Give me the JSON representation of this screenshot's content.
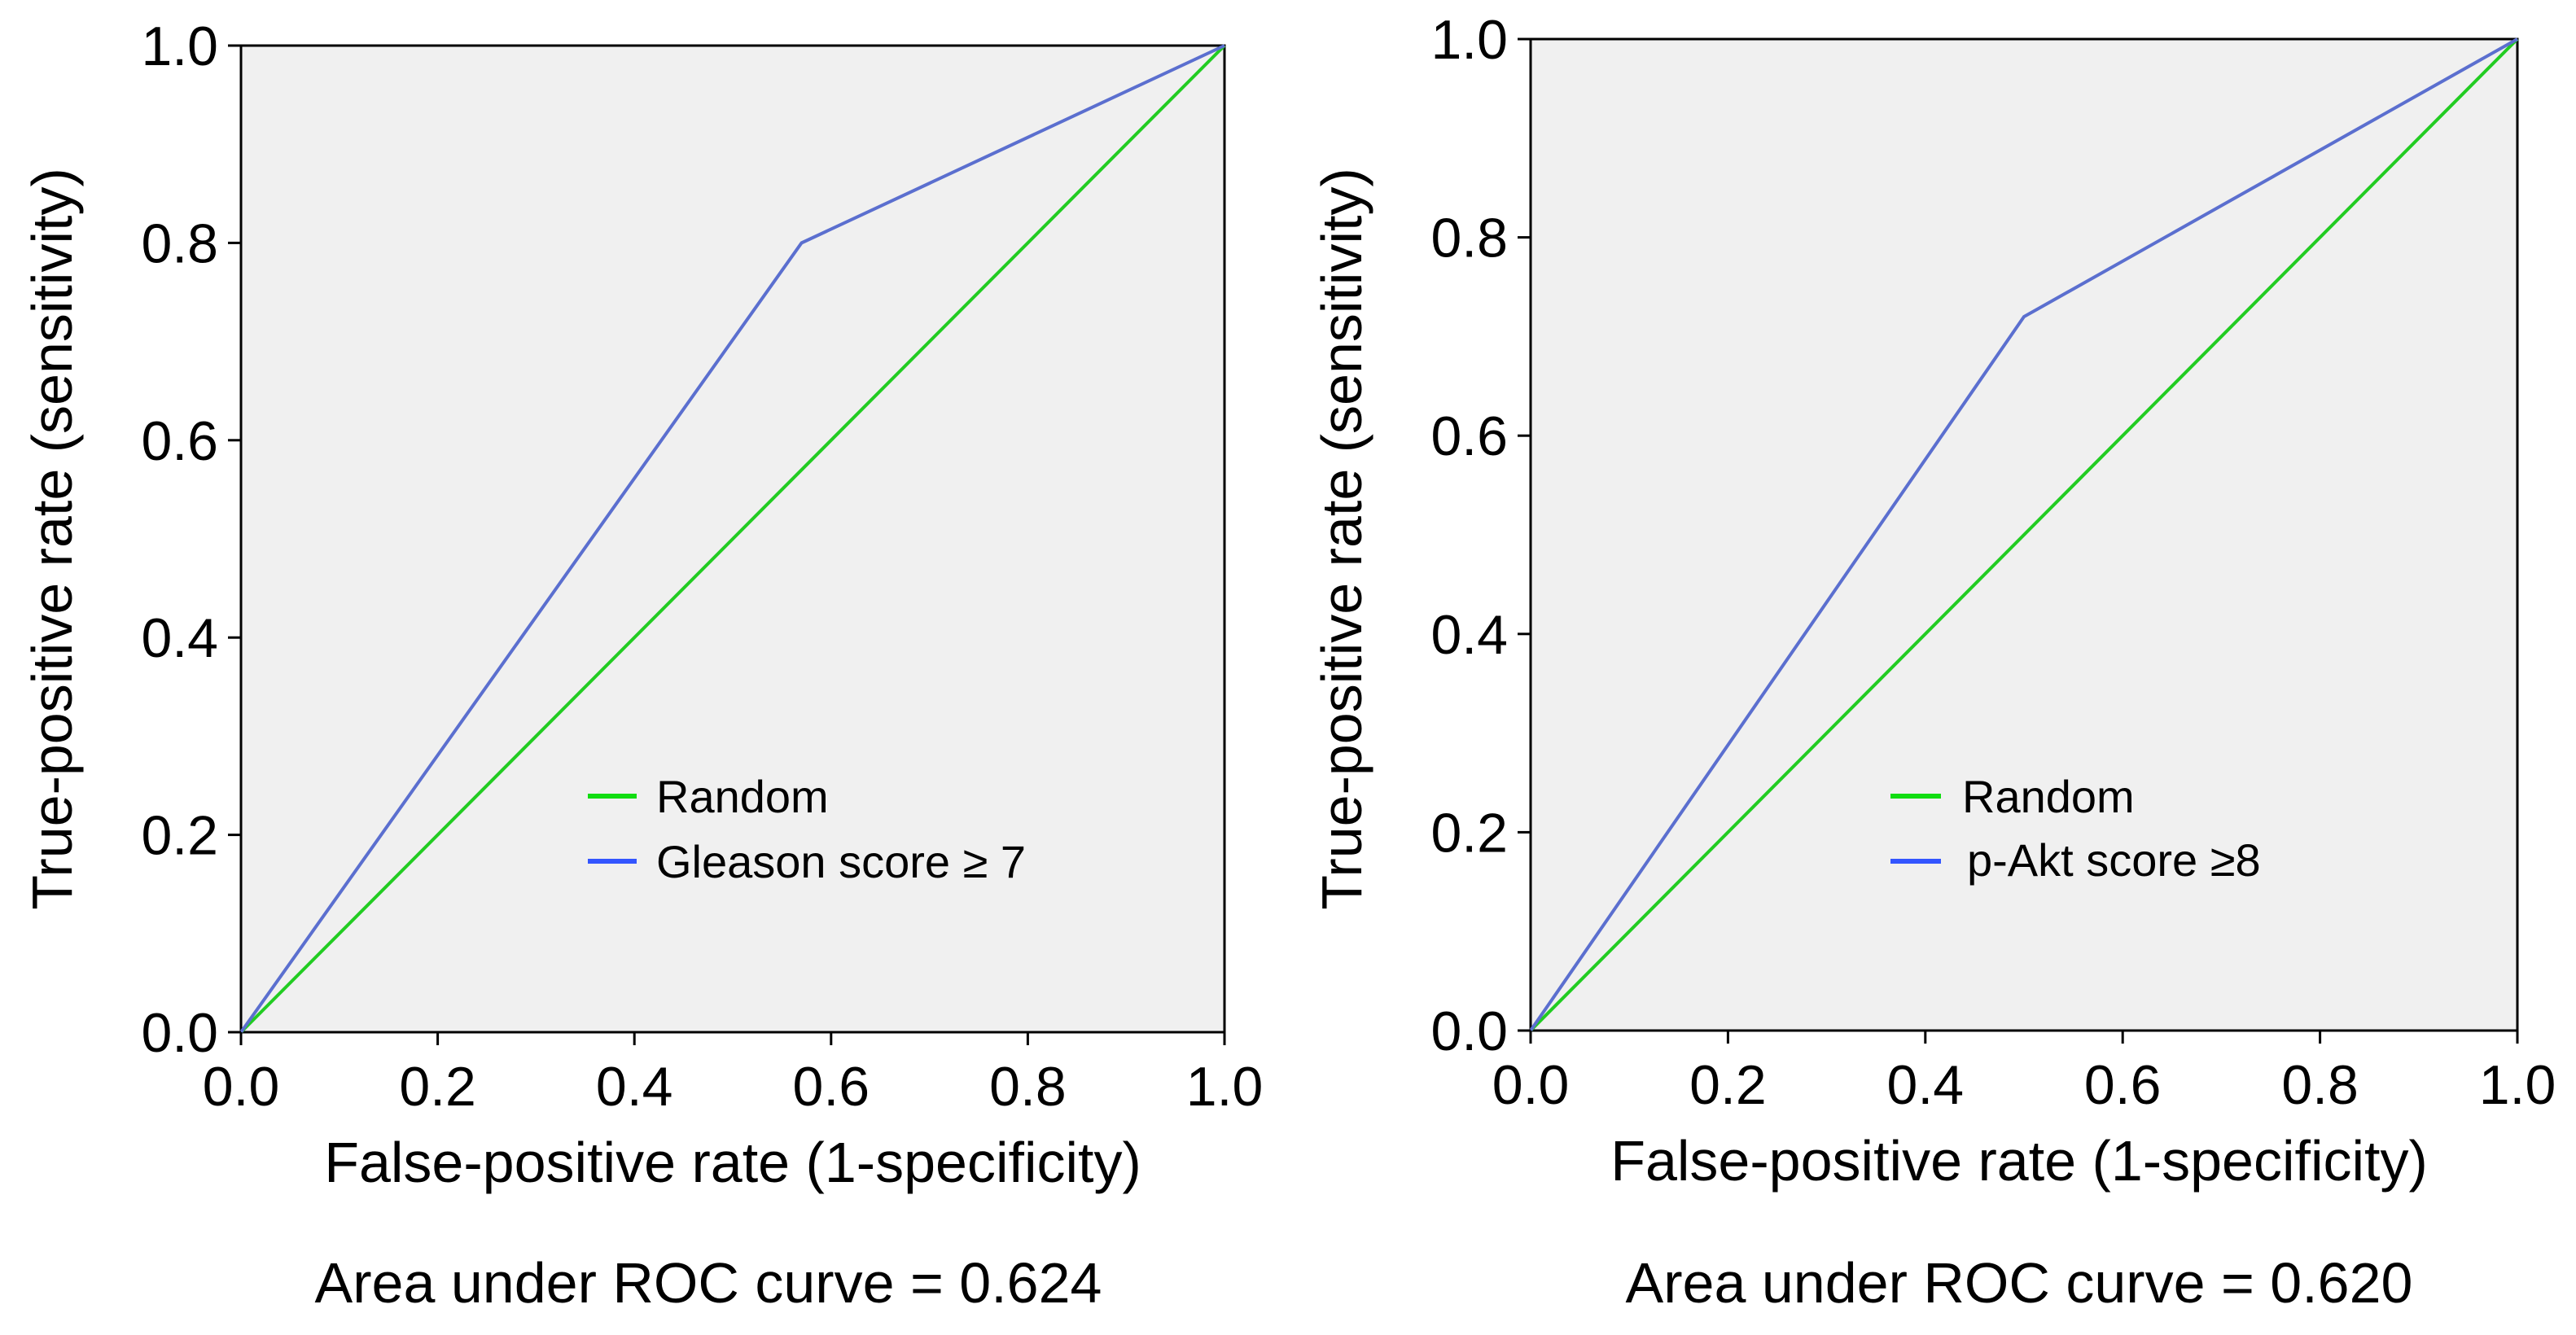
{
  "colors": {
    "random_line": "#22cc22",
    "roc_line": "#5b6fcf",
    "plot_bg": "#f0f0f0",
    "legend_random": "#11dd11",
    "legend_roc": "#3355ff"
  },
  "chart_data": [
    {
      "type": "line",
      "xlabel": "False-positive rate (1-specificity)",
      "ylabel": "True-positive rate (sensitivity)",
      "xlim": [
        0,
        1
      ],
      "ylim": [
        0,
        1
      ],
      "xticks": [
        "0.0",
        "0.2",
        "0.4",
        "0.6",
        "0.8",
        "1.0"
      ],
      "yticks": [
        "0.0",
        "0.2",
        "0.4",
        "0.6",
        "0.8",
        "1.0"
      ],
      "grid": false,
      "legend_position": "center-right",
      "series": [
        {
          "name": "Random",
          "x": [
            0,
            1
          ],
          "y": [
            0,
            1
          ]
        },
        {
          "name": "Gleason score ≥ 7",
          "x": [
            0,
            0.57,
            1
          ],
          "y": [
            0,
            0.8,
            1
          ]
        }
      ],
      "caption": "Area under ROC curve = 0.624"
    },
    {
      "type": "line",
      "xlabel": "False-positive rate (1-specificity)",
      "ylabel": "True-positive rate (sensitivity)",
      "xlim": [
        0,
        1
      ],
      "ylim": [
        0,
        1
      ],
      "xticks": [
        "0.0",
        "0.2",
        "0.4",
        "0.6",
        "0.8",
        "1.0"
      ],
      "yticks": [
        "0.0",
        "0.2",
        "0.4",
        "0.6",
        "0.8",
        "1.0"
      ],
      "grid": false,
      "legend_position": "center-right",
      "series": [
        {
          "name": "Random",
          "x": [
            0,
            1
          ],
          "y": [
            0,
            1
          ]
        },
        {
          "name": "p-Akt score ≥8",
          "x": [
            0,
            0.5,
            1
          ],
          "y": [
            0,
            0.72,
            1
          ]
        }
      ],
      "caption": "Area under ROC curve = 0.620"
    }
  ]
}
